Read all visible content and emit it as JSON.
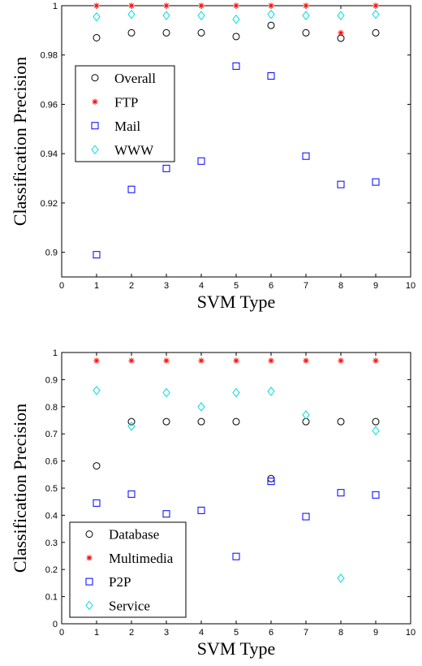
{
  "chart_data": [
    {
      "type": "scatter",
      "title": "",
      "xlabel": "SVM Type",
      "ylabel": "Classification Precision",
      "xlim": [
        0,
        10
      ],
      "ylim": [
        0.89,
        1.0
      ],
      "xticks": [
        0,
        1,
        2,
        3,
        4,
        5,
        6,
        7,
        8,
        9,
        10
      ],
      "yticks": [
        0.9,
        0.92,
        0.94,
        0.96,
        0.98,
        1
      ],
      "ytick_labels": [
        "0.9",
        "0.92",
        "0.94",
        "0.96",
        "0.98",
        "1"
      ],
      "grid": false,
      "legend_position": "upper-left",
      "x": [
        1,
        2,
        3,
        4,
        5,
        6,
        7,
        8,
        9
      ],
      "series": [
        {
          "name": "Overall",
          "marker": "circle",
          "color": "#000000",
          "values": [
            0.987,
            0.989,
            0.989,
            0.989,
            0.9875,
            0.992,
            0.989,
            0.9868,
            0.989
          ]
        },
        {
          "name": "FTP",
          "marker": "star",
          "color": "#ff0000",
          "values": [
            1.0,
            1.0,
            1.0,
            1.0,
            1.0,
            1.0,
            1.0,
            0.989,
            1.0
          ]
        },
        {
          "name": "Mail",
          "marker": "square",
          "color": "#0000ff",
          "values": [
            0.899,
            0.9255,
            0.934,
            0.937,
            0.9755,
            0.9715,
            0.939,
            0.9275,
            0.9285
          ]
        },
        {
          "name": "WWW",
          "marker": "diamond",
          "color": "#00dddd",
          "values": [
            0.9955,
            0.9965,
            0.996,
            0.996,
            0.9945,
            0.9965,
            0.996,
            0.996,
            0.9965
          ]
        }
      ]
    },
    {
      "type": "scatter",
      "title": "",
      "xlabel": "SVM Type",
      "ylabel": "Classification Precision",
      "xlim": [
        0,
        10
      ],
      "ylim": [
        0,
        1
      ],
      "xticks": [
        0,
        1,
        2,
        3,
        4,
        5,
        6,
        7,
        8,
        9,
        10
      ],
      "yticks": [
        0,
        0.1,
        0.2,
        0.3,
        0.4,
        0.5,
        0.6,
        0.7,
        0.8,
        0.9,
        1
      ],
      "ytick_labels": [
        "0",
        "0.1",
        "0.2",
        "0.3",
        "0.4",
        "0.5",
        "0.6",
        "0.7",
        "0.8",
        "0.9",
        "1"
      ],
      "grid": false,
      "legend_position": "lower-left",
      "x": [
        1,
        2,
        3,
        4,
        5,
        6,
        7,
        8,
        9
      ],
      "series": [
        {
          "name": "Database",
          "marker": "circle",
          "color": "#000000",
          "values": [
            0.582,
            0.745,
            0.745,
            0.745,
            0.745,
            0.535,
            0.745,
            0.745,
            0.745
          ]
        },
        {
          "name": "Multimedia",
          "marker": "star",
          "color": "#ff0000",
          "values": [
            0.97,
            0.97,
            0.97,
            0.97,
            0.97,
            0.97,
            0.97,
            0.97,
            0.97
          ]
        },
        {
          "name": "P2P",
          "marker": "square",
          "color": "#0000ff",
          "values": [
            0.445,
            0.478,
            0.405,
            0.418,
            0.248,
            0.525,
            0.395,
            0.483,
            0.475
          ]
        },
        {
          "name": "Service",
          "marker": "diamond",
          "color": "#00dddd",
          "values": [
            0.86,
            0.728,
            0.852,
            0.8,
            0.852,
            0.857,
            0.77,
            0.168,
            0.712
          ]
        }
      ]
    }
  ]
}
